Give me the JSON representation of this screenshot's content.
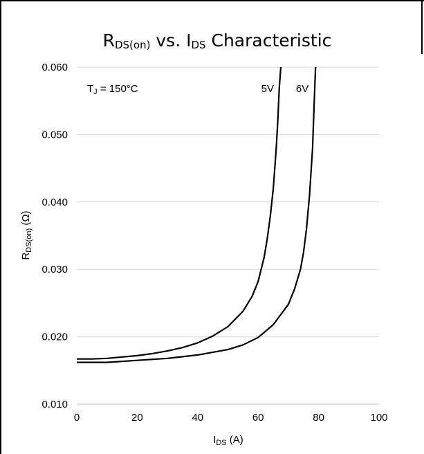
{
  "chart_data": {
    "type": "line",
    "title": {
      "main": "R",
      "sub": "DS(on)",
      "rest": " vs. I",
      "sub2": "DS",
      "rest2": " Characteristic"
    },
    "xlabel": {
      "main": "I",
      "sub": "DS",
      "rest": " (A)"
    },
    "ylabel": {
      "main": "R",
      "sub": "DS(on)",
      "rest": " (Ω)"
    },
    "xlim": [
      0,
      100
    ],
    "ylim": [
      0.01,
      0.06
    ],
    "x_ticks": [
      0,
      20,
      40,
      60,
      80,
      100
    ],
    "x_tick_labels": [
      "0",
      "20",
      "40",
      "60",
      "80",
      "100"
    ],
    "y_ticks": [
      0.01,
      0.02,
      0.03,
      0.04,
      0.05,
      0.06
    ],
    "y_tick_labels": [
      "0.010",
      "0.020",
      "0.030",
      "0.040",
      "0.050",
      "0.060"
    ],
    "grid": "horizontal",
    "annotation": {
      "main": "T",
      "sub": "J",
      "rest": " = 150°C"
    },
    "series": [
      {
        "name": "5V",
        "x": [
          0,
          5,
          10,
          15,
          20,
          25,
          30,
          35,
          40,
          45,
          50,
          55,
          58,
          60,
          62,
          63,
          64,
          65,
          66,
          66.5,
          67,
          67.5
        ],
        "y": [
          0.0167,
          0.0167,
          0.0168,
          0.017,
          0.0172,
          0.0175,
          0.0179,
          0.0184,
          0.0191,
          0.0201,
          0.0215,
          0.0238,
          0.026,
          0.0282,
          0.0318,
          0.0345,
          0.0378,
          0.042,
          0.048,
          0.052,
          0.057,
          0.06
        ]
      },
      {
        "name": "6V",
        "x": [
          0,
          10,
          20,
          30,
          40,
          50,
          55,
          60,
          65,
          70,
          72,
          74,
          75,
          76,
          77,
          78,
          78.5,
          79
        ],
        "y": [
          0.0162,
          0.0162,
          0.0165,
          0.0168,
          0.0173,
          0.0181,
          0.0188,
          0.0199,
          0.0218,
          0.0248,
          0.027,
          0.03,
          0.0325,
          0.036,
          0.041,
          0.048,
          0.054,
          0.06
        ]
      }
    ]
  }
}
